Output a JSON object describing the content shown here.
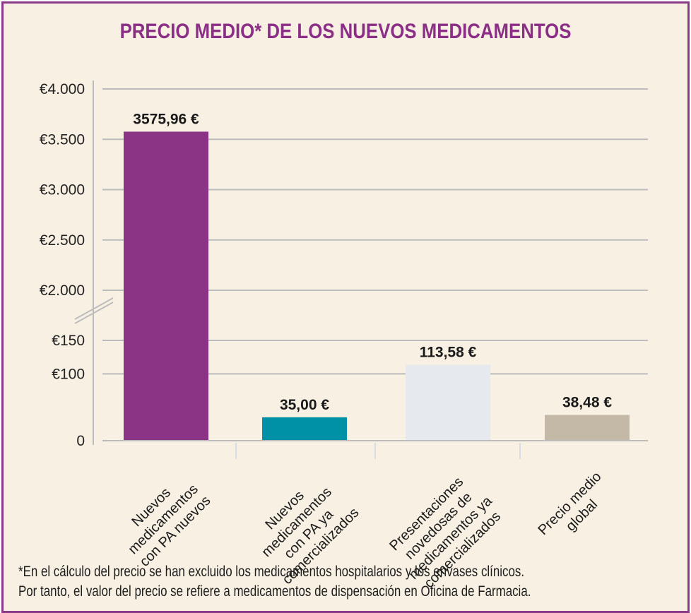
{
  "chart_data": {
    "type": "bar",
    "title": "PRECIO MEDIO* DE LOS NUEVOS MEDICAMENTOS",
    "xlabel": "",
    "ylabel": "",
    "categories": [
      "Nuevos medicamentos con PA nuevos",
      "Nuevos medicamentos con PA ya comercializados",
      "Presentaciones novedosas de medicamentos ya comercializados",
      "Precio medio global"
    ],
    "category_label_lines": [
      [
        "Nuevos",
        "medicamentos",
        "con PA nuevos"
      ],
      [
        "Nuevos",
        "medicamentos",
        "con PA ya",
        "comercializados"
      ],
      [
        "Presentaciones",
        "novedosas de",
        "medicamentos ya",
        "comercializados"
      ],
      [
        "Precio medio",
        "global"
      ]
    ],
    "values": [
      3575.96,
      35.0,
      113.58,
      38.48
    ],
    "value_labels": [
      "3575,96 €",
      "35,00 €",
      "113,58 €",
      "38,48 €"
    ],
    "bar_colors": [
      "#8b3384",
      "#0091a6",
      "#e6eaee",
      "#c3b9a6"
    ],
    "axis_break": {
      "lower_range": [
        0,
        150
      ],
      "upper_range": [
        2000,
        4000
      ]
    },
    "yticks": [
      {
        "value": 0,
        "label": "0"
      },
      {
        "value": 100,
        "label": "€100"
      },
      {
        "value": 150,
        "label": "€150"
      },
      {
        "value": 2000,
        "label": "€2.000"
      },
      {
        "value": 2500,
        "label": "€2.500"
      },
      {
        "value": 3000,
        "label": "€3.000"
      },
      {
        "value": 3500,
        "label": "€3.500"
      },
      {
        "value": 4000,
        "label": "€4.000"
      }
    ],
    "grid": true,
    "legend": "none"
  },
  "footnote": {
    "line1": "*En el cálculo del precio se han excluido los medicamentos hospitalarios y los envases clínicos.",
    "line2": "Por tanto, el valor del precio se refiere a medicamentos de dispensación en Oficina de Farmacia."
  },
  "colors": {
    "title": "#8b2f86",
    "border": "#8b3a8a",
    "background": "#f8f0e3",
    "grid": "#bcbcbc"
  }
}
